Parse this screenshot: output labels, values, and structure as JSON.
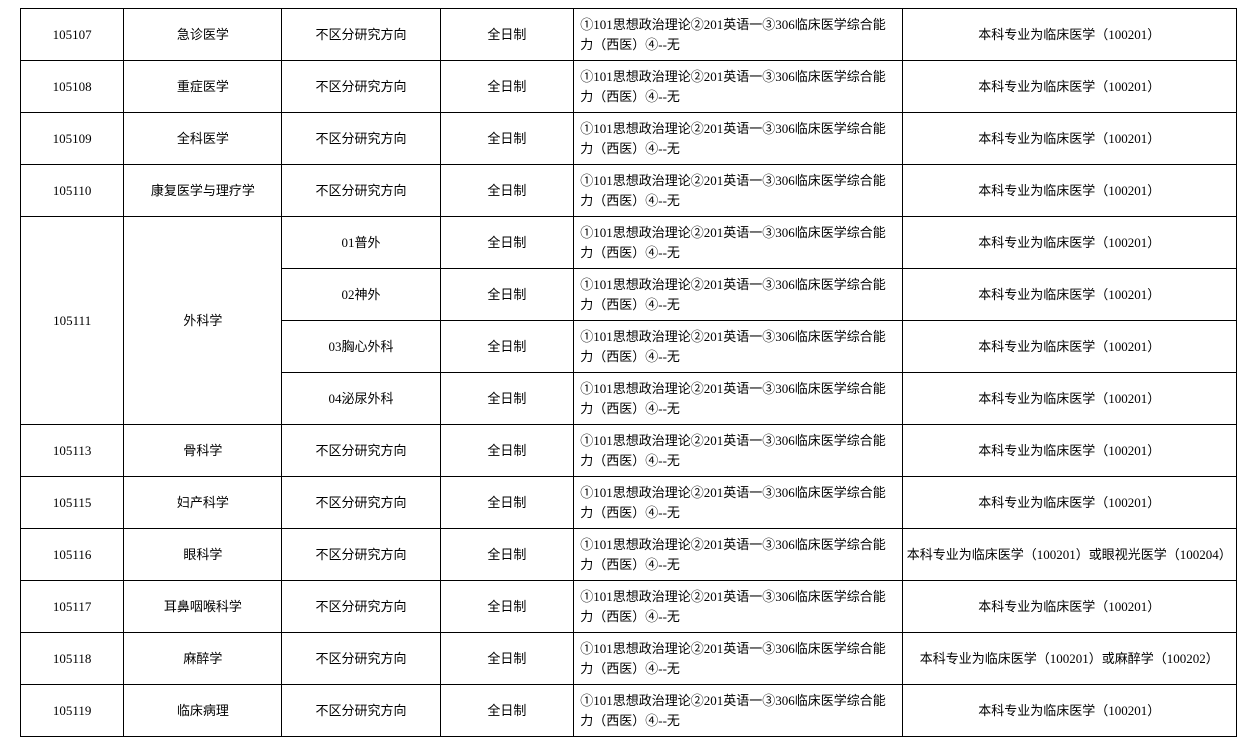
{
  "table": {
    "columns": {
      "code_width": "8.5%",
      "major_width": "13%",
      "direction_width": "13%",
      "type_width": "11%",
      "exam_width": "27%",
      "notes_width": "27.5%"
    },
    "common": {
      "no_direction": "不区分研究方向",
      "fulltime": "全日制",
      "exam_subjects": "①101思想政治理论②201英语一③306临床医学综合能力（西医）④--无",
      "clinical_note": "本科专业为临床医学（100201）",
      "ophthalmology_note": "本科专业为临床医学（100201）或眼视光医学（100204）",
      "anesthesia_note": "本科专业为临床医学（100201）或麻醉学（100202）"
    },
    "rows": [
      {
        "code": "105107",
        "major": "急诊医学",
        "direction": "no_direction",
        "type": "fulltime",
        "exam": "exam_subjects",
        "notes": "clinical_note"
      },
      {
        "code": "105108",
        "major": "重症医学",
        "direction": "no_direction",
        "type": "fulltime",
        "exam": "exam_subjects",
        "notes": "clinical_note"
      },
      {
        "code": "105109",
        "major": "全科医学",
        "direction": "no_direction",
        "type": "fulltime",
        "exam": "exam_subjects",
        "notes": "clinical_note"
      },
      {
        "code": "105110",
        "major": "康复医学与理疗学",
        "direction": "no_direction",
        "type": "fulltime",
        "exam": "exam_subjects",
        "notes": "clinical_note"
      },
      {
        "code": "105111",
        "major": "外科学",
        "rowspan": 4,
        "subs": [
          {
            "direction_text": "01普外",
            "type": "fulltime",
            "exam": "exam_subjects",
            "notes": "clinical_note"
          },
          {
            "direction_text": "02神外",
            "type": "fulltime",
            "exam": "exam_subjects",
            "notes": "clinical_note"
          },
          {
            "direction_text": "03胸心外科",
            "type": "fulltime",
            "exam": "exam_subjects",
            "notes": "clinical_note"
          },
          {
            "direction_text": "04泌尿外科",
            "type": "fulltime",
            "exam": "exam_subjects",
            "notes": "clinical_note"
          }
        ]
      },
      {
        "code": "105113",
        "major": "骨科学",
        "direction": "no_direction",
        "type": "fulltime",
        "exam": "exam_subjects",
        "notes": "clinical_note"
      },
      {
        "code": "105115",
        "major": "妇产科学",
        "direction": "no_direction",
        "type": "fulltime",
        "exam": "exam_subjects",
        "notes": "clinical_note"
      },
      {
        "code": "105116",
        "major": "眼科学",
        "direction": "no_direction",
        "type": "fulltime",
        "exam": "exam_subjects",
        "notes": "ophthalmology_note"
      },
      {
        "code": "105117",
        "major": "耳鼻咽喉科学",
        "direction": "no_direction",
        "type": "fulltime",
        "exam": "exam_subjects",
        "notes": "clinical_note"
      },
      {
        "code": "105118",
        "major": "麻醉学",
        "direction": "no_direction",
        "type": "fulltime",
        "exam": "exam_subjects",
        "notes": "anesthesia_note"
      },
      {
        "code": "105119",
        "major": "临床病理",
        "direction": "no_direction",
        "type": "fulltime",
        "exam": "exam_subjects",
        "notes": "clinical_note"
      }
    ]
  }
}
